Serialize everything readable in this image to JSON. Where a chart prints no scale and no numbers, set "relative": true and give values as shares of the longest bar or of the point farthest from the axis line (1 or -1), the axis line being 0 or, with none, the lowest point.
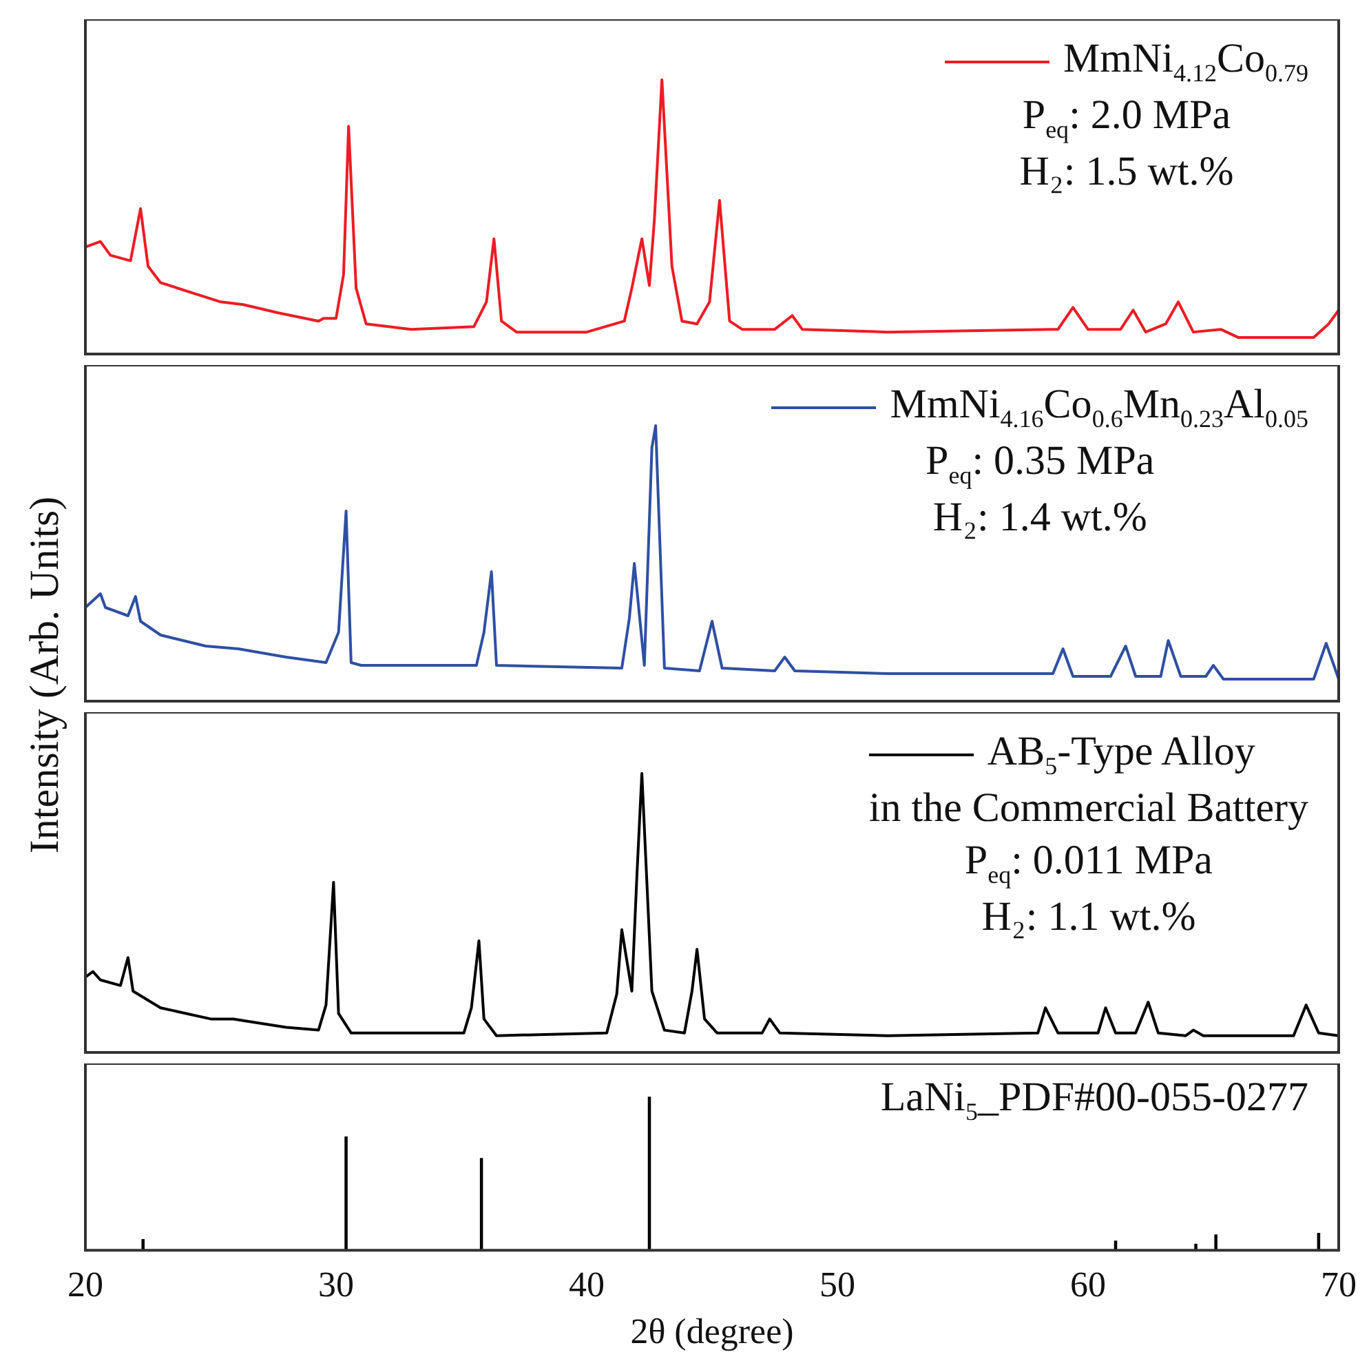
{
  "chart_data": [
    {
      "type": "line",
      "relative": true,
      "xlim": [
        20,
        70
      ],
      "xticks": [
        20,
        30,
        40,
        50,
        60,
        70
      ],
      "tick_labels": false,
      "legend": "top right",
      "annotations": [
        "P$_{eq}$: 2.0 MPa",
        "H₂: 1.5 wt.%"
      ],
      "series": [
        {
          "name": "MmNi$_{4.12}$Co$_{0.79}$",
          "color": "#ed1c24",
          "x": [
            20,
            20.6,
            21,
            21.8,
            22.2,
            22.5,
            23,
            25.4,
            26.3,
            27.7,
            29.3,
            29.5,
            30,
            30.3,
            30.5,
            30.8,
            31.2,
            33,
            35.5,
            36,
            36.3,
            36.6,
            37.2,
            40,
            41.5,
            41.8,
            42.2,
            42.5,
            42.7,
            43,
            43.4,
            43.8,
            44.4,
            44.9,
            45.3,
            45.7,
            46.2,
            47.5,
            48.2,
            48.6,
            52,
            58.8,
            59.4,
            60,
            61.3,
            61.8,
            62.3,
            63.1,
            63.6,
            64.2,
            65.3,
            66,
            69,
            69.6,
            70
          ],
          "values": [
            0.39,
            0.41,
            0.36,
            0.34,
            0.53,
            0.32,
            0.26,
            0.19,
            0.18,
            0.15,
            0.12,
            0.13,
            0.13,
            0.29,
            0.83,
            0.24,
            0.11,
            0.09,
            0.1,
            0.19,
            0.42,
            0.12,
            0.08,
            0.08,
            0.12,
            0.24,
            0.42,
            0.25,
            0.49,
            1,
            0.32,
            0.12,
            0.11,
            0.19,
            0.56,
            0.12,
            0.09,
            0.09,
            0.14,
            0.09,
            0.08,
            0.09,
            0.17,
            0.09,
            0.09,
            0.16,
            0.08,
            0.11,
            0.19,
            0.08,
            0.09,
            0.06,
            0.06,
            0.11,
            0.16
          ]
        }
      ]
    },
    {
      "type": "line",
      "relative": true,
      "xlim": [
        20,
        70
      ],
      "xticks": [
        20,
        30,
        40,
        50,
        60,
        70
      ],
      "tick_labels": false,
      "legend": "top right",
      "ylabel": "Intensity (Arb. Units)",
      "annotations": [
        "P$_{eq}$: 0.35 MPa",
        "H₂: 1.4 wt.%"
      ],
      "series": [
        {
          "name": "MmNi$_{4.16}$Co$_{0.6}$Mn$_{0.23}$Al$_{0.05}$",
          "color": "#2e4fa3",
          "x": [
            20,
            20.6,
            20.8,
            21.7,
            22,
            22.2,
            23,
            24.8,
            26.1,
            28,
            29.6,
            30.1,
            30.4,
            30.6,
            31,
            35.6,
            35.9,
            36.2,
            36.4,
            41.4,
            41.7,
            41.9,
            42.3,
            42.6,
            42.75,
            43.1,
            44.5,
            45,
            45.4,
            47.5,
            47.9,
            48.3,
            52,
            58.6,
            59,
            59.4,
            60.9,
            61.5,
            61.9,
            62.9,
            63.2,
            63.7,
            64.7,
            65,
            65.4,
            69,
            69.5,
            70
          ],
          "values": [
            0.34,
            0.39,
            0.34,
            0.31,
            0.38,
            0.29,
            0.24,
            0.2,
            0.19,
            0.16,
            0.14,
            0.25,
            0.69,
            0.14,
            0.13,
            0.13,
            0.25,
            0.47,
            0.13,
            0.12,
            0.3,
            0.5,
            0.13,
            0.92,
            1,
            0.12,
            0.11,
            0.29,
            0.12,
            0.11,
            0.16,
            0.11,
            0.1,
            0.1,
            0.19,
            0.09,
            0.09,
            0.2,
            0.09,
            0.09,
            0.22,
            0.09,
            0.09,
            0.13,
            0.08,
            0.08,
            0.21,
            0.08
          ]
        }
      ]
    },
    {
      "type": "line",
      "relative": true,
      "xlim": [
        20,
        70
      ],
      "xticks": [
        20,
        30,
        40,
        50,
        60,
        70
      ],
      "tick_labels": false,
      "legend": "top right",
      "annotations": [
        "in the Commercial Battery",
        "P$_{eq}$: 0.011 MPa",
        "H₂: 1.1 wt.%"
      ],
      "series": [
        {
          "name": "AB$_{5}$-Type Alloy",
          "color": "#000000",
          "x": [
            20,
            20.3,
            20.6,
            21.4,
            21.7,
            21.9,
            23,
            25,
            25.9,
            28,
            29.3,
            29.6,
            29.9,
            30.1,
            30.6,
            35.1,
            35.4,
            35.7,
            35.9,
            36.4,
            40.8,
            41.2,
            41.4,
            41.8,
            42,
            42.2,
            42.6,
            43.1,
            43.9,
            44.2,
            44.4,
            44.7,
            45.2,
            47,
            47.3,
            47.7,
            52,
            58,
            58.3,
            58.8,
            60.4,
            60.7,
            61.1,
            61.9,
            62.4,
            62.8,
            63.9,
            64.2,
            64.6,
            68.2,
            68.7,
            69.2,
            70
          ],
          "values": [
            0.27,
            0.29,
            0.26,
            0.24,
            0.34,
            0.22,
            0.16,
            0.12,
            0.12,
            0.09,
            0.08,
            0.17,
            0.61,
            0.14,
            0.07,
            0.07,
            0.16,
            0.4,
            0.12,
            0.06,
            0.07,
            0.21,
            0.44,
            0.22,
            0.63,
            1,
            0.22,
            0.08,
            0.07,
            0.22,
            0.37,
            0.12,
            0.07,
            0.07,
            0.12,
            0.07,
            0.06,
            0.07,
            0.16,
            0.07,
            0.07,
            0.16,
            0.07,
            0.07,
            0.18,
            0.07,
            0.06,
            0.08,
            0.06,
            0.06,
            0.17,
            0.07,
            0.06
          ]
        }
      ]
    },
    {
      "type": "bar",
      "relative": true,
      "xlim": [
        20,
        70
      ],
      "xticks": [
        20,
        30,
        40,
        50,
        60,
        70
      ],
      "xlabel": "2θ (degree)",
      "series": [
        {
          "name": "LaNi$_{5}$_PDF#00-055-0277",
          "color": "#000000",
          "x": [
            22.3,
            30.4,
            35.8,
            42.5,
            61.1,
            64.3,
            65.1,
            69.2
          ],
          "values": [
            0.07,
            0.74,
            0.6,
            1,
            0.06,
            0.04,
            0.1,
            0.11
          ]
        }
      ]
    }
  ]
}
